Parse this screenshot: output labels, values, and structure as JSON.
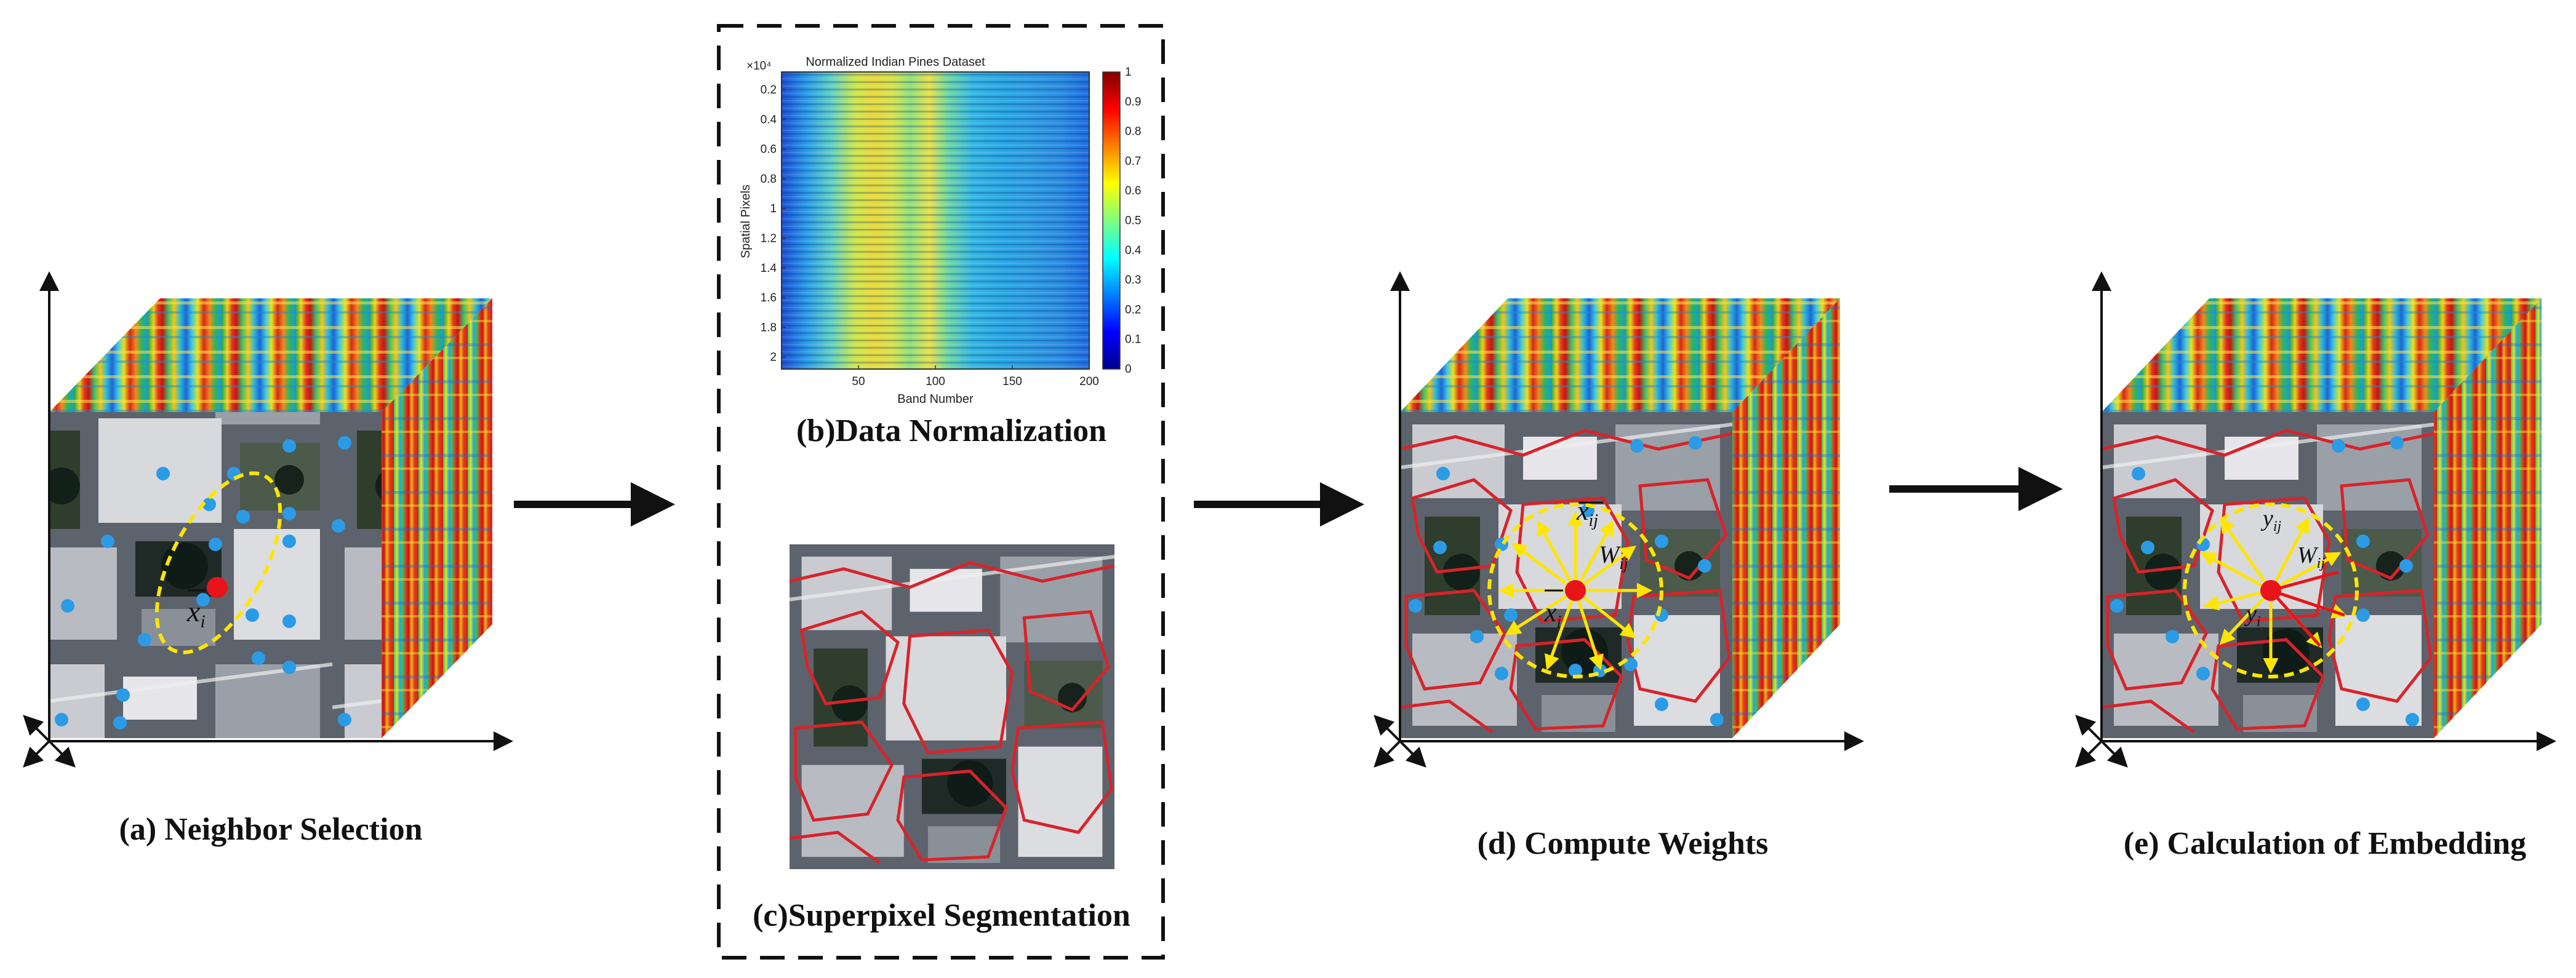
{
  "captions": {
    "a": "(a) Neighbor Selection",
    "b": "(b)Data Normalization",
    "c": "(c)Superpixel Segmentation",
    "d": "(d) Compute Weights",
    "e": "(e) Calculation of Embedding"
  },
  "heatmap": {
    "title": "Normalized Indian Pines Dataset",
    "xlabel": "Band Number",
    "ylabel": "Spatial Pixels",
    "exponent": "×10⁴",
    "xticks": [
      "50",
      "100",
      "150",
      "200"
    ],
    "yticks": [
      "0.2",
      "0.4",
      "0.6",
      "0.8",
      "1",
      "1.2",
      "1.4",
      "1.6",
      "1.8",
      "2"
    ],
    "colorbar_ticks": [
      "0",
      "0.1",
      "0.2",
      "0.3",
      "0.4",
      "0.5",
      "0.6",
      "0.7",
      "0.8",
      "0.9",
      "1"
    ]
  },
  "labels": {
    "xi_a": "x",
    "xi_a_sub": "i",
    "xij_d": "x",
    "xij_d_sub": "ij",
    "wij_d": "W",
    "wij_d_sub": "ij",
    "xi_d": "x",
    "xi_d_sub": "i",
    "yij_e": "y",
    "yij_e_sub": "ij",
    "wij_e": "W",
    "wij_e_sub": "ij",
    "yi_e": "y",
    "yi_e_sub": "i"
  },
  "colors": {
    "center_point": "#e8141a",
    "neighbor_point": "#2b9be6",
    "ellipse": "#ffe600",
    "weight_arrow": "#ffe600",
    "segment_border": "#d8232a"
  }
}
